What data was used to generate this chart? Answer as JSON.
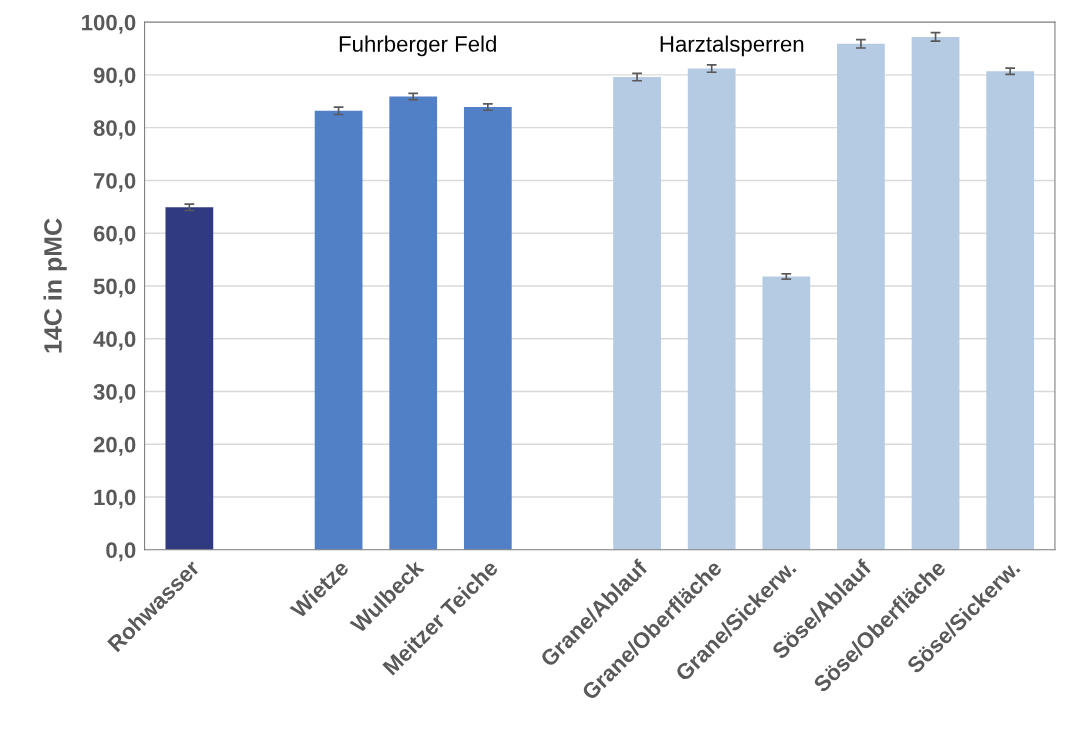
{
  "chart_data": {
    "type": "bar",
    "ylabel": "14C in pMC",
    "categories": [
      "Rohwasser",
      null,
      "Wietze",
      "Wulbeck",
      "Meitzer Teiche",
      null,
      "Grane/Ablauf",
      "Grane/Oberfläche",
      "Grane/Sickerw.",
      "Söse/Ablauf",
      "Söse/Oberfläche",
      "Söse/Sickerw."
    ],
    "values": [
      64.9,
      null,
      83.2,
      85.9,
      83.9,
      null,
      89.6,
      91.2,
      51.8,
      95.9,
      97.2,
      90.7
    ],
    "errors": [
      0.6,
      null,
      0.7,
      0.6,
      0.6,
      null,
      0.7,
      0.7,
      0.5,
      0.8,
      0.8,
      0.6
    ],
    "colors": [
      "#303a80",
      null,
      "#5280c6",
      "#5280c6",
      "#5280c6",
      null,
      "#b4cbe3",
      "#b4cbe3",
      "#b4cbe3",
      "#b4cbe3",
      "#b4cbe3",
      "#b4cbe3"
    ],
    "ylim": [
      0,
      100
    ],
    "yticks": [
      {
        "value": 0,
        "label": "0,0"
      },
      {
        "value": 10,
        "label": "10,0"
      },
      {
        "value": 20,
        "label": "20,0"
      },
      {
        "value": 30,
        "label": "30,0"
      },
      {
        "value": 40,
        "label": "40,0"
      },
      {
        "value": 50,
        "label": "50,0"
      },
      {
        "value": 60,
        "label": "60,0"
      },
      {
        "value": 70,
        "label": "70,0"
      },
      {
        "value": 80,
        "label": "80,0"
      },
      {
        "value": 90,
        "label": "90,0"
      },
      {
        "value": 100,
        "label": "100,0"
      }
    ],
    "grid": "y",
    "annotations": [
      "Fuhrberger Feld",
      "Harztalsperren"
    ]
  }
}
